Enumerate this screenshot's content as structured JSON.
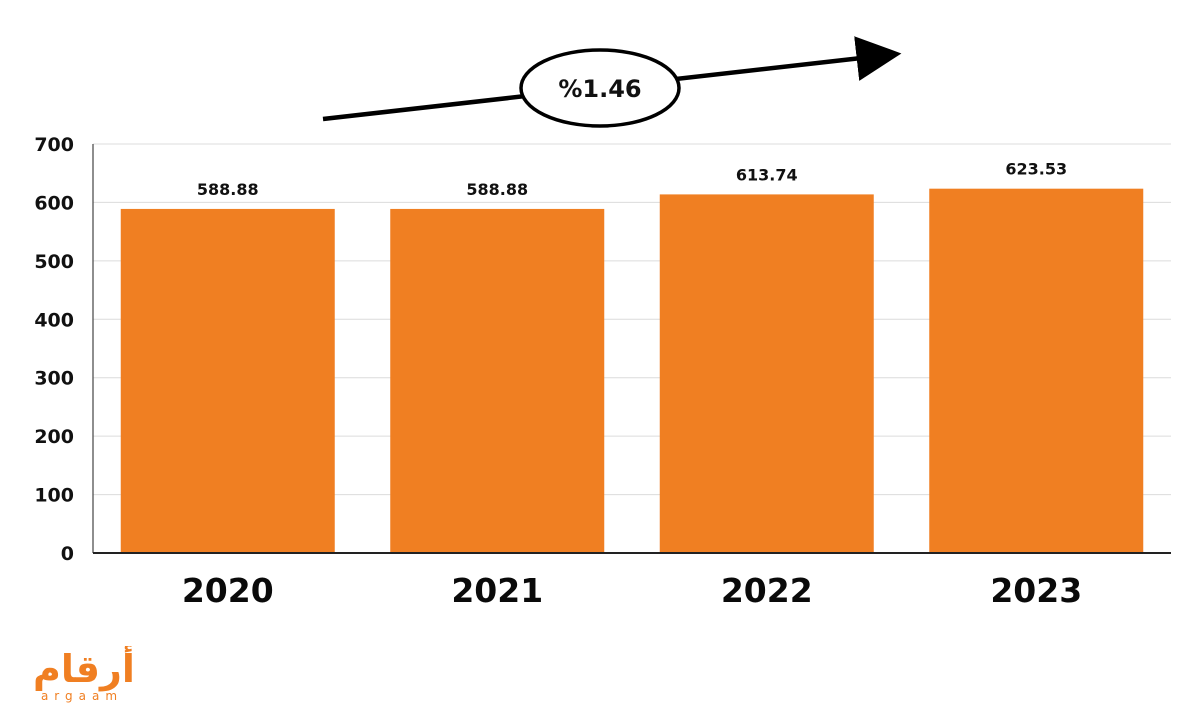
{
  "chart_data": {
    "type": "bar",
    "categories": [
      "2020",
      "2021",
      "2022",
      "2023"
    ],
    "values": [
      588.88,
      588.88,
      613.74,
      623.53
    ],
    "data_labels": [
      "588.88",
      "588.88",
      "613.74",
      "623.53"
    ],
    "ylim": [
      0,
      700
    ],
    "yticks": [
      0,
      100,
      200,
      300,
      400,
      500,
      600,
      700
    ],
    "grid": true,
    "bar_color": "#f07f22",
    "annotation": "%1.46"
  },
  "logo": {
    "arabic": "أرقام",
    "latin": "argaam"
  }
}
